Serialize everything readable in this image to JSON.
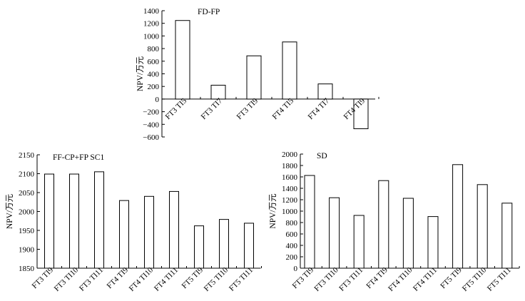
{
  "chart_data": [
    {
      "type": "bar",
      "title": "FD-FP",
      "ylabel": "NPV/万元",
      "xlabel": "",
      "categories": [
        "FT3 TI5",
        "FT3 TI7",
        "FT3 TI9",
        "FT4 TI5",
        "FT4 TI7",
        "FT4 TI9"
      ],
      "values": [
        1245,
        220,
        685,
        905,
        240,
        -470
      ],
      "ylim": [
        -600,
        1400
      ],
      "yticks": [
        1400,
        1200,
        1000,
        800,
        600,
        400,
        200,
        0,
        -200,
        -400,
        -600
      ],
      "ytick_labels": [
        "1400",
        "1200",
        "1000",
        "800",
        "600",
        "400",
        "200",
        "0",
        "−200",
        "−400",
        "−600"
      ]
    },
    {
      "type": "bar",
      "title": "FF-CP+FP SC1",
      "ylabel": "NPV/万元",
      "xlabel": "",
      "categories": [
        "FT3 TI9",
        "FT3 TI10",
        "FT3 TI11",
        "FT4 TI9",
        "FT4 TI10",
        "FT4 TI11",
        "FT5 TI9",
        "FT5 TI10",
        "FT5 TI11"
      ],
      "values": [
        2099,
        2099,
        2105,
        2029,
        2040,
        2053,
        1962,
        1979,
        1969
      ],
      "ylim": [
        1850,
        2150
      ],
      "yticks": [
        2150,
        2100,
        2050,
        2000,
        1950,
        1900,
        1850
      ],
      "ytick_labels": [
        "2150",
        "2100",
        "2050",
        "2000",
        "1950",
        "1900",
        "1850"
      ]
    },
    {
      "type": "bar",
      "title": "SD",
      "ylabel": "NPV/万元",
      "xlabel": "",
      "categories": [
        "FT3 TI9",
        "FT3 TI10",
        "FT3 TI11",
        "FT4 TI9",
        "FT4 TI10",
        "FT4 TI11",
        "FT5 TI9",
        "FT5 TI10",
        "FT5 TI11"
      ],
      "values": [
        1625,
        1235,
        925,
        1535,
        1225,
        905,
        1815,
        1465,
        1140
      ],
      "ylim": [
        0,
        2000
      ],
      "yticks": [
        2000,
        1800,
        1600,
        1400,
        1200,
        1000,
        800,
        600,
        400,
        200,
        0
      ],
      "ytick_labels": [
        "2000",
        "1800",
        "1600",
        "1400",
        "1200",
        "1000",
        "800",
        "600",
        "400",
        "200",
        "0"
      ]
    }
  ]
}
